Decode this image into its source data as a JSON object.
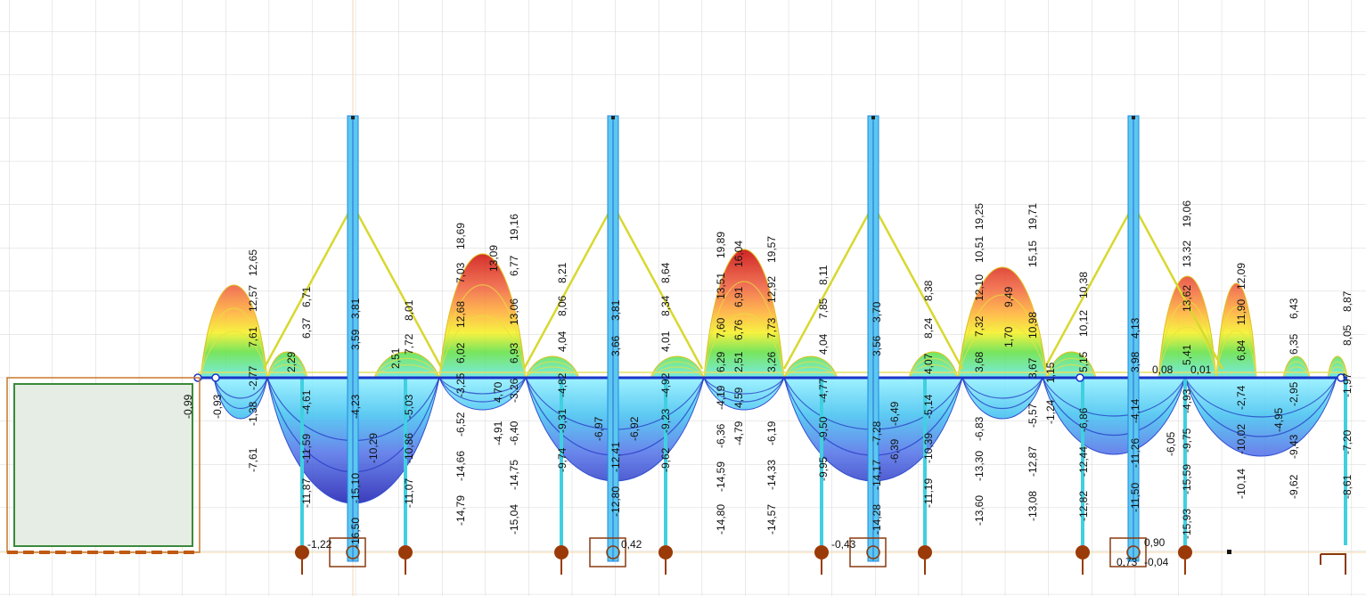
{
  "labels": [
    "-1,22",
    "0,42",
    "-0,43",
    "0,90",
    "0,73",
    "-0,04",
    "0,08",
    "0,01",
    "-0,93",
    "-0,99",
    "-7,61",
    "-1,38",
    "-2,77",
    "7,61",
    "12,57",
    "12,65",
    "2,29",
    "6,37",
    "6,71",
    "-11,87",
    "-11,59",
    "-4,61",
    "-4,23",
    "3,59",
    "3,81",
    "-16,50",
    "-15,10",
    "-10,29",
    "2,51",
    "7,72",
    "8,01",
    "-11,07",
    "-10,86",
    "-5,03",
    "-14,79",
    "-14,66",
    "-6,52",
    "-3,25",
    "6,02",
    "12,68",
    "7,03",
    "18,69",
    "-4,91",
    "4,70",
    "13,09",
    "-15,04",
    "-14,75",
    "-6,40",
    "-3,26",
    "6,93",
    "13,06",
    "6,77",
    "19,16",
    "-9,74",
    "-9,31",
    "-4,82",
    "4,04",
    "8,06",
    "8,21",
    "-6,97",
    "-12,80",
    "-12,41",
    "3,66",
    "3,81",
    "-6,92",
    "-9,62",
    "-9,23",
    "-4,92",
    "4,01",
    "8,34",
    "8,64",
    "-14,80",
    "-14,59",
    "-6,36",
    "-4,19",
    "6,29",
    "7,60",
    "13,51",
    "19,89",
    "-4,79",
    "4,59",
    "2,51",
    "6,76",
    "6,91",
    "16,04",
    "-14,57",
    "-14,33",
    "-6,19",
    "3,26",
    "7,73",
    "12,92",
    "19,57",
    "-9,95",
    "-9,50",
    "-4,77",
    "4,04",
    "7,85",
    "8,11",
    "-14,28",
    "-14,17",
    "-7,28",
    "3,56",
    "3,70",
    "-6,39",
    "-6,49",
    "-11,19",
    "-10,39",
    "-5,14",
    "4,07",
    "8,24",
    "8,38",
    "-13,60",
    "-13,30",
    "-6,83",
    "3,68",
    "7,32",
    "12,10",
    "10,51",
    "19,25",
    "1,70",
    "9,49",
    "-13,08",
    "-12,87",
    "-5,57",
    "3,67",
    "10,98",
    "15,15",
    "19,71",
    "-1,24",
    "1,15",
    "-12,82",
    "-12,44",
    "-6,86",
    "5,15",
    "10,12",
    "10,38",
    "-11,50",
    "-11,26",
    "-4,14",
    "3,98",
    "4,13",
    "-6,05",
    "-15,93",
    "-15,59",
    "-9,75",
    "-4,93",
    "5,41",
    "13,62",
    "13,32",
    "19,06",
    "-10,14",
    "-10,02",
    "-2,74",
    "6,84",
    "11,90",
    "12,09",
    "-4,95",
    "-9,62",
    "-9,43",
    "-2,95",
    "6,35",
    "6,43",
    "-8,61",
    "-7,20",
    "-1,97",
    "8,05",
    "8,87"
  ]
}
